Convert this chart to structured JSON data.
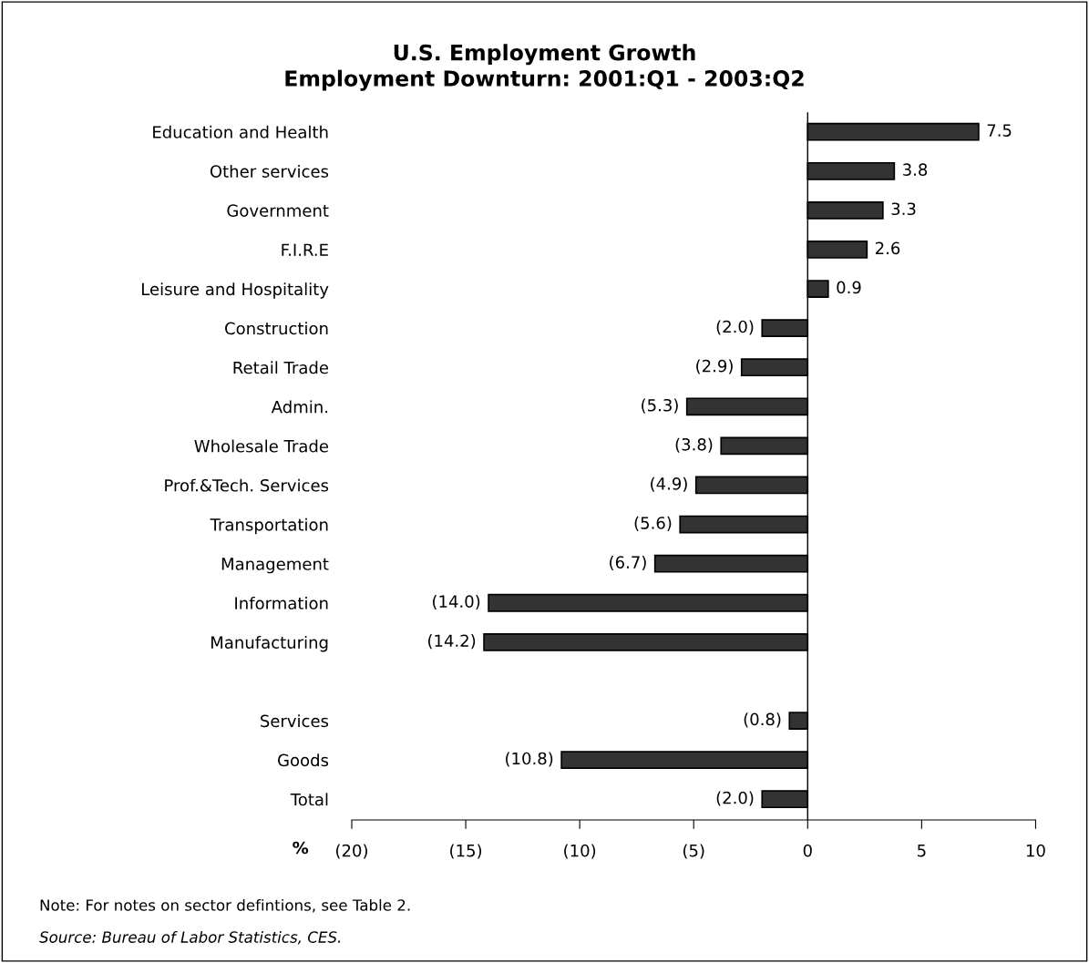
{
  "chart_data": {
    "type": "bar",
    "orientation": "horizontal",
    "title": "U.S. Employment Growth\nEmployment Downturn: 2001:Q1 - 2003:Q2",
    "xlabel": "%",
    "categories": [
      "Education and Health",
      "Other services",
      "Government",
      "F.I.R.E",
      "Leisure and Hospitality",
      "Construction",
      "Retail Trade",
      "Admin.",
      "Wholesale Trade",
      "Prof.&Tech. Services",
      "Transportation",
      "Management",
      "Information",
      "Manufacturing",
      null,
      "Services",
      "Goods",
      "Total"
    ],
    "values": [
      7.5,
      3.8,
      3.3,
      2.6,
      0.9,
      -2.0,
      -2.9,
      -5.3,
      -3.8,
      -4.9,
      -5.6,
      -6.7,
      -14.0,
      -14.2,
      null,
      -0.8,
      -10.8,
      -2.0
    ],
    "value_labels": [
      "7.5",
      "3.8",
      "3.3",
      "2.6",
      "0.9",
      "(2.0)",
      "(2.9)",
      "(5.3)",
      "(3.8)",
      "(4.9)",
      "(5.6)",
      "(6.7)",
      "(14.0)",
      "(14.2)",
      null,
      "(0.8)",
      "(10.8)",
      "(2.0)"
    ],
    "color": "#333333",
    "xlim": [
      -20,
      10
    ],
    "xticks": [
      {
        "value": -20,
        "label": "(20)"
      },
      {
        "value": -15,
        "label": "(15)"
      },
      {
        "value": -10,
        "label": "(10)"
      },
      {
        "value": -5,
        "label": "(5)"
      },
      0,
      5,
      10
    ],
    "ref_lines": [
      {
        "axis": "x",
        "value": 0,
        "color": "#000000"
      }
    ],
    "annotations": [
      "Note: For notes on sector defintions, see Table 2.",
      "Source: Bureau of Labor Statistics, CES."
    ]
  }
}
